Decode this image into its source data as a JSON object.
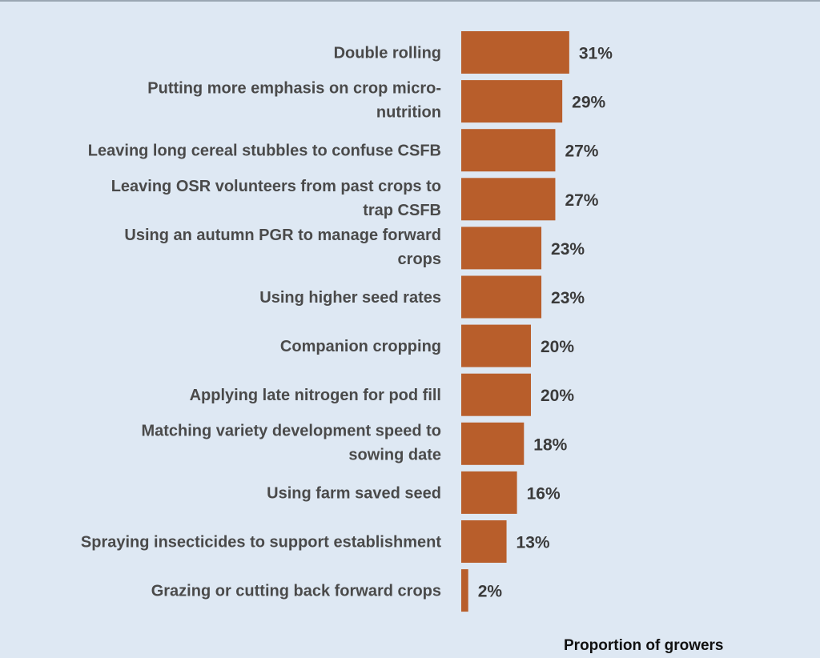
{
  "chart_data": {
    "type": "bar",
    "orientation": "horizontal",
    "xlabel": "Proportion of growers",
    "unit": "%",
    "bar_color": "#b85e2b",
    "background": "#dee8f3",
    "grid": false,
    "categories": [
      "Double rolling",
      "Putting more emphasis on crop micro-nutrition",
      "Leaving long cereal stubbles to confuse CSFB",
      "Leaving OSR volunteers from past crops to trap CSFB",
      "Using an autumn PGR to manage forward crops",
      "Using higher seed rates",
      "Companion cropping",
      "Applying late nitrogen for pod fill",
      "Matching variety development speed to sowing date",
      "Using farm saved seed",
      "Spraying insecticides to support establishment",
      "Grazing or cutting back forward crops"
    ],
    "category_lines": [
      [
        "Double rolling"
      ],
      [
        "Putting more emphasis on crop micro-",
        "nutrition"
      ],
      [
        "Leaving long cereal stubbles to confuse CSFB"
      ],
      [
        "Leaving OSR volunteers from past crops to",
        "trap CSFB"
      ],
      [
        "Using an autumn PGR to manage forward",
        "crops"
      ],
      [
        "Using higher seed rates"
      ],
      [
        "Companion cropping"
      ],
      [
        "Applying late nitrogen for pod fill"
      ],
      [
        "Matching variety development speed to",
        "sowing date"
      ],
      [
        "Using farm saved seed"
      ],
      [
        "Spraying insecticides to support establishment"
      ],
      [
        "Grazing or cutting back forward crops"
      ]
    ],
    "values": [
      31,
      29,
      27,
      27,
      23,
      23,
      20,
      20,
      18,
      16,
      13,
      2
    ],
    "value_labels": [
      "31%",
      "29%",
      "27%",
      "27%",
      "23%",
      "23%",
      "20%",
      "20%",
      "18%",
      "16%",
      "13%",
      "2%"
    ]
  }
}
